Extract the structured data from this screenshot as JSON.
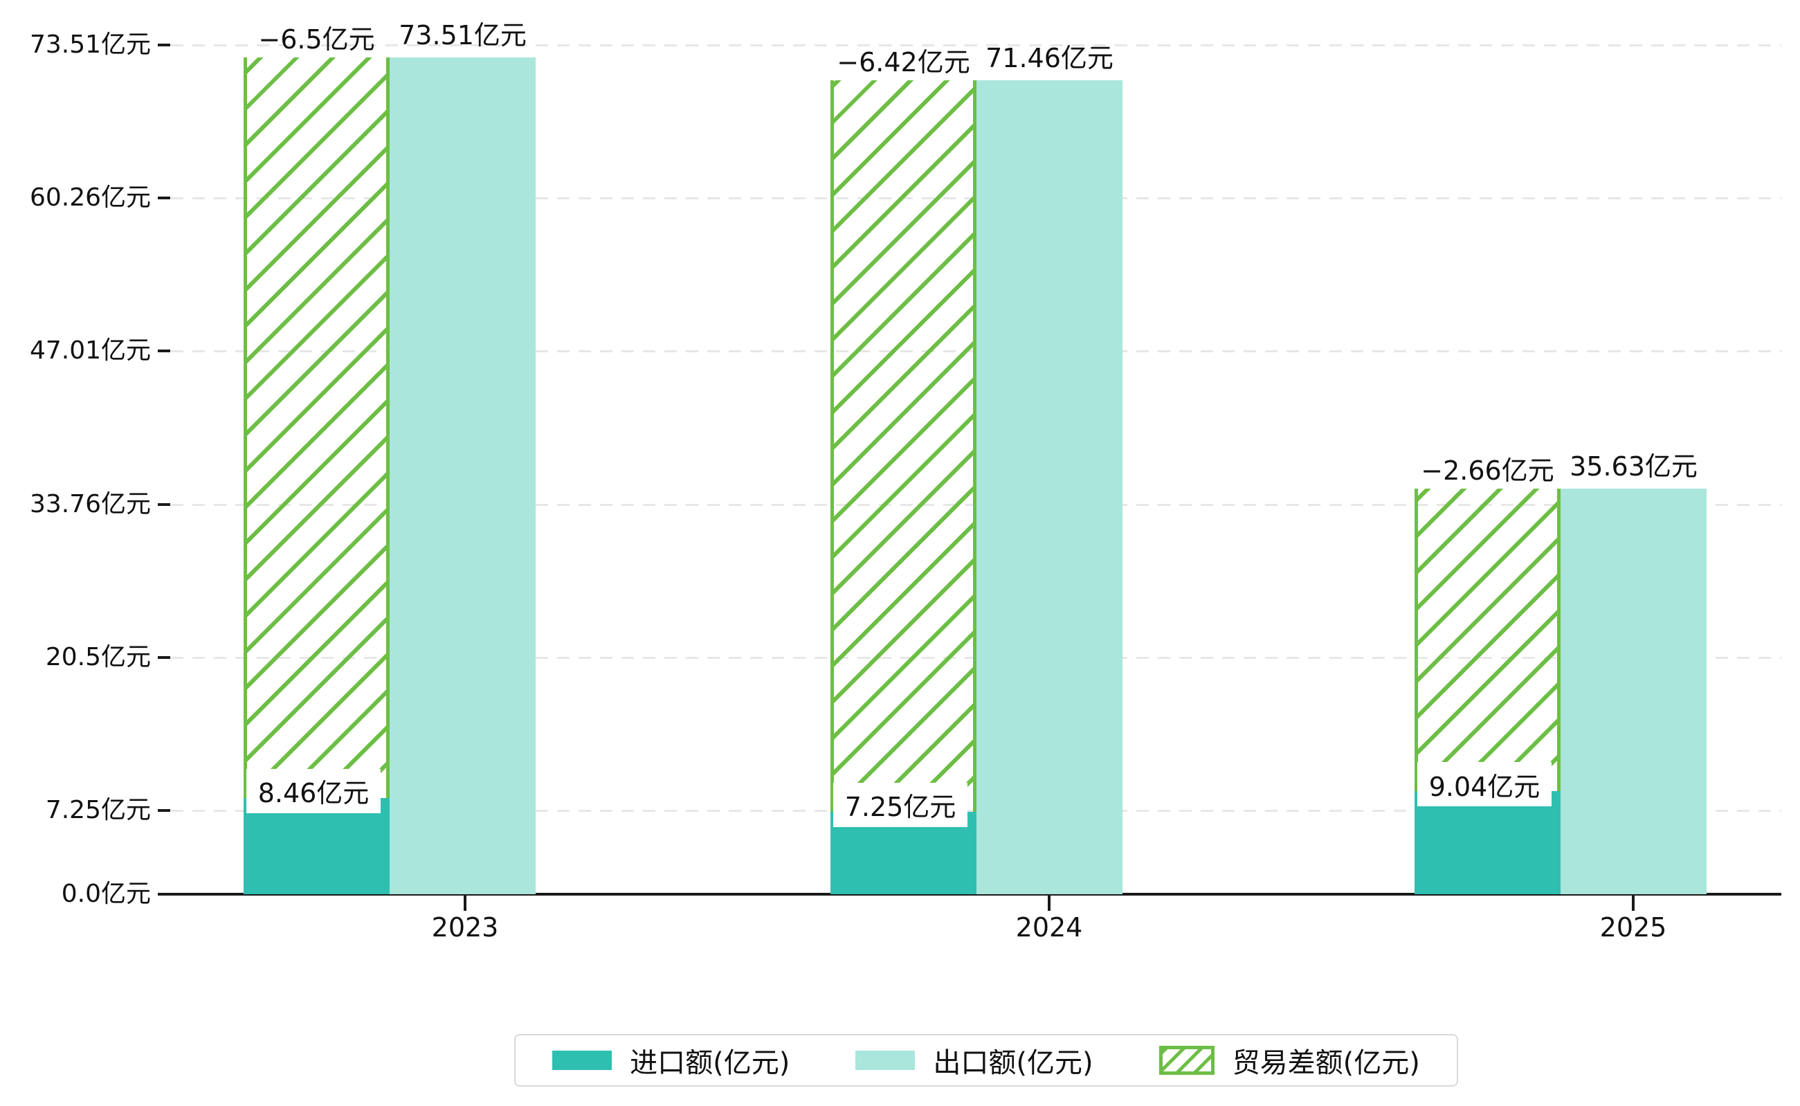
{
  "chart_data": {
    "type": "bar",
    "title": "",
    "categories": [
      "2023",
      "2024",
      "2025"
    ],
    "series": [
      {
        "name": "进口额(亿元)",
        "color": "#2ebfb1",
        "values": [
          8.46,
          7.25,
          9.04
        ],
        "labels": [
          "8.46亿元",
          "7.25亿元",
          "9.04亿元"
        ],
        "label_style": "white-box-at-bar-top"
      },
      {
        "name": "出口额(亿元)",
        "color": "#aae6dc",
        "values": [
          73.51,
          71.46,
          35.63
        ],
        "labels": [
          "73.51亿元",
          "71.46亿元",
          "35.63亿元"
        ],
        "label_style": "above-bar"
      },
      {
        "name": "贸易差额(亿元)",
        "color": "#6dbe45",
        "pattern": "diagonal-hatch",
        "values": [
          -6.5,
          -6.42,
          -2.66
        ],
        "labels": [
          "−6.5亿元",
          "−6.42亿元",
          "−2.66亿元"
        ],
        "label_style": "above-hatch",
        "spans": "from-import-top-to-export-top"
      }
    ],
    "y_axis": {
      "unit": "亿元",
      "min": 0,
      "max": 73.51,
      "ticks": [
        {
          "label": "73.51亿元",
          "value": 73.51
        },
        {
          "label": "60.26亿元",
          "value": 60.26
        },
        {
          "label": "47.01亿元",
          "value": 47.01
        },
        {
          "label": "33.76亿元",
          "value": 33.76
        },
        {
          "label": "20.5亿元",
          "value": 20.5
        },
        {
          "label": "7.25亿元",
          "value": 7.25
        },
        {
          "label": "0.0亿元",
          "value": 0
        }
      ]
    },
    "x_axis": {
      "labels": [
        "2023",
        "2024",
        "2025"
      ]
    },
    "grid": "dashed-horizontal",
    "legend": {
      "position": "bottom"
    },
    "colors": {
      "import": "#2ebfb1",
      "export": "#aae6dc",
      "trade_balance": "#6dbe45",
      "axis": "#1a1a1a",
      "gridline": "#e7e7e7",
      "legend_border": "#d9d9d9",
      "background": "#ffffff",
      "label_text": "#111111"
    }
  }
}
